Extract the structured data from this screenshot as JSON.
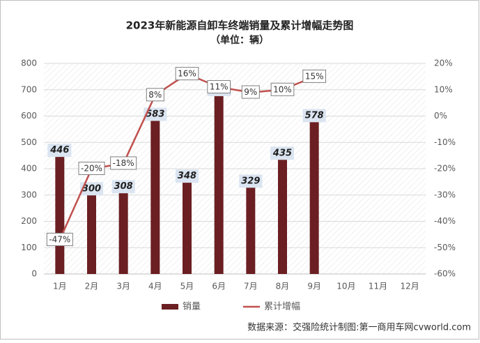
{
  "chart_data": {
    "type": "combo",
    "title": "2023年新能源自卸车终端销量及累计增幅走势图",
    "subtitle": "（单位：辆）",
    "source": "数据来源：交强险统计制图:第一商用车网cvworld.com",
    "categories": [
      "1月",
      "2月",
      "3月",
      "4月",
      "5月",
      "6月",
      "7月",
      "8月",
      "9月",
      "10月",
      "11月",
      "12月"
    ],
    "series": [
      {
        "name": "销量",
        "type": "bar",
        "color": "#6b1f22",
        "values": [
          446,
          300,
          308,
          583,
          348,
          677,
          329,
          435,
          578,
          null,
          null,
          null
        ]
      },
      {
        "name": "累计增幅",
        "type": "line",
        "axis": "y2",
        "color": "#c0504d",
        "values": [
          -47,
          -20,
          -18,
          8,
          16,
          11,
          9,
          10,
          15,
          null,
          null,
          null
        ],
        "value_labels": [
          "-47%",
          "-20%",
          "-18%",
          "8%",
          "16%",
          "11%",
          "9%",
          "10%",
          "15%",
          null,
          null,
          null
        ]
      }
    ],
    "ylim": [
      0,
      800
    ],
    "yticks": [
      0,
      100,
      200,
      300,
      400,
      500,
      600,
      700,
      800
    ],
    "y2lim": [
      -60,
      20
    ],
    "y2ticks": [
      {
        "value": -60,
        "label": "-60%"
      },
      {
        "value": -50,
        "label": "-50%"
      },
      {
        "value": -40,
        "label": "-40%"
      },
      {
        "value": -30,
        "label": "-30%"
      },
      {
        "value": -20,
        "label": "-20%"
      },
      {
        "value": -10,
        "label": "-10%"
      },
      {
        "value": 0,
        "label": "0%"
      },
      {
        "value": 10,
        "label": "10%"
      },
      {
        "value": 20,
        "label": "20%"
      }
    ],
    "grid": true
  }
}
